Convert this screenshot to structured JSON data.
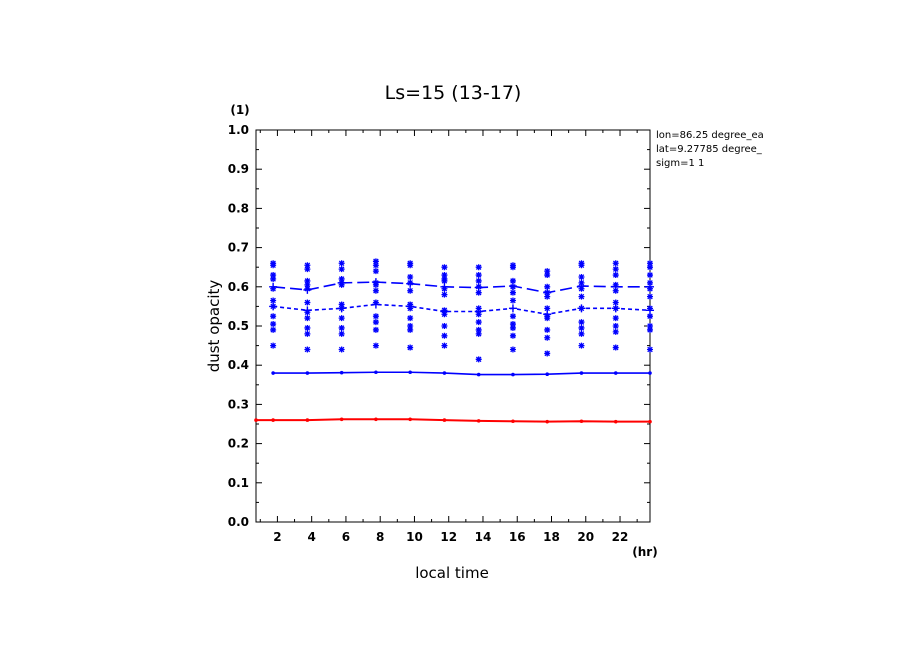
{
  "chart_data": {
    "type": "line",
    "title": "Ls=15 (13-17)",
    "xlabel": "local time",
    "xunit": "(hr)",
    "ylabel": "dust opacity",
    "yunit": "(1)",
    "xlim": [
      0.75,
      23.75
    ],
    "ylim": [
      0.0,
      1.0
    ],
    "x_ticks": [
      "2",
      "4",
      "6",
      "8",
      "10",
      "12",
      "14",
      "16",
      "18",
      "20",
      "22"
    ],
    "y_ticks": [
      "0.0",
      "0.1",
      "0.2",
      "0.3",
      "0.4",
      "0.5",
      "0.6",
      "0.7",
      "0.8",
      "0.9",
      "1.0"
    ],
    "annotations": [
      "lon=86.25 degree_ea",
      "lat=9.27785 degree_",
      "sigm=1 1"
    ],
    "grid": false,
    "x": [
      0.75,
      1.75,
      3.75,
      5.75,
      7.75,
      9.75,
      11.75,
      13.75,
      15.75,
      17.75,
      19.75,
      21.75,
      23.75
    ],
    "series": [
      {
        "style": "solid-red",
        "color": "#ff0000",
        "values": [
          0.26,
          0.26,
          0.26,
          0.262,
          0.262,
          0.262,
          0.26,
          0.258,
          0.257,
          0.256,
          0.257,
          0.256,
          0.256
        ]
      },
      {
        "style": "solid-blue",
        "color": "#0000ff",
        "values": [
          null,
          0.38,
          0.38,
          0.381,
          0.382,
          0.382,
          0.38,
          0.376,
          0.376,
          0.377,
          0.38,
          0.38,
          0.38
        ]
      },
      {
        "style": "short-dash-blue",
        "color": "#0000ff",
        "values": [
          null,
          0.55,
          0.54,
          0.545,
          0.555,
          0.55,
          0.537,
          0.537,
          0.545,
          0.53,
          0.545,
          0.545,
          0.54
        ]
      },
      {
        "style": "long-dash-blue",
        "color": "#0000ff",
        "values": [
          null,
          0.6,
          0.592,
          0.61,
          0.612,
          0.608,
          0.6,
          0.598,
          0.602,
          0.585,
          0.602,
          0.6,
          0.6
        ]
      }
    ],
    "scatter_points": {
      "color": "#0000ff",
      "marker": "asterisk",
      "x": [
        1.75,
        3.75,
        5.75,
        7.75,
        9.75,
        11.75,
        13.75,
        15.75,
        17.75,
        19.75,
        21.75,
        23.75
      ],
      "values": [
        [
          0.66,
          0.655,
          0.63,
          0.62,
          0.595,
          0.565,
          0.55,
          0.525,
          0.505,
          0.49,
          0.45
        ],
        [
          0.655,
          0.645,
          0.615,
          0.605,
          0.595,
          0.56,
          0.535,
          0.52,
          0.495,
          0.48,
          0.44
        ],
        [
          0.66,
          0.645,
          0.62,
          0.61,
          0.605,
          0.555,
          0.545,
          0.52,
          0.495,
          0.48,
          0.44
        ],
        [
          0.665,
          0.655,
          0.64,
          0.61,
          0.605,
          0.59,
          0.56,
          0.525,
          0.51,
          0.49,
          0.45
        ],
        [
          0.66,
          0.655,
          0.625,
          0.61,
          0.59,
          0.555,
          0.545,
          0.52,
          0.5,
          0.49,
          0.445
        ],
        [
          0.65,
          0.63,
          0.62,
          0.615,
          0.595,
          0.58,
          0.54,
          0.53,
          0.5,
          0.475,
          0.45
        ],
        [
          0.65,
          0.63,
          0.615,
          0.6,
          0.585,
          0.545,
          0.53,
          0.51,
          0.49,
          0.48,
          0.415
        ],
        [
          0.655,
          0.65,
          0.615,
          0.6,
          0.585,
          0.565,
          0.525,
          0.505,
          0.495,
          0.475,
          0.44
        ],
        [
          0.64,
          0.63,
          0.6,
          0.585,
          0.575,
          0.545,
          0.525,
          0.52,
          0.49,
          0.47,
          0.43
        ],
        [
          0.66,
          0.655,
          0.625,
          0.61,
          0.595,
          0.575,
          0.545,
          0.51,
          0.495,
          0.48,
          0.45
        ],
        [
          0.66,
          0.645,
          0.63,
          0.605,
          0.59,
          0.56,
          0.545,
          0.52,
          0.5,
          0.485,
          0.445
        ],
        [
          0.66,
          0.65,
          0.63,
          0.61,
          0.595,
          0.575,
          0.545,
          0.525,
          0.5,
          0.49,
          0.44
        ]
      ]
    }
  }
}
